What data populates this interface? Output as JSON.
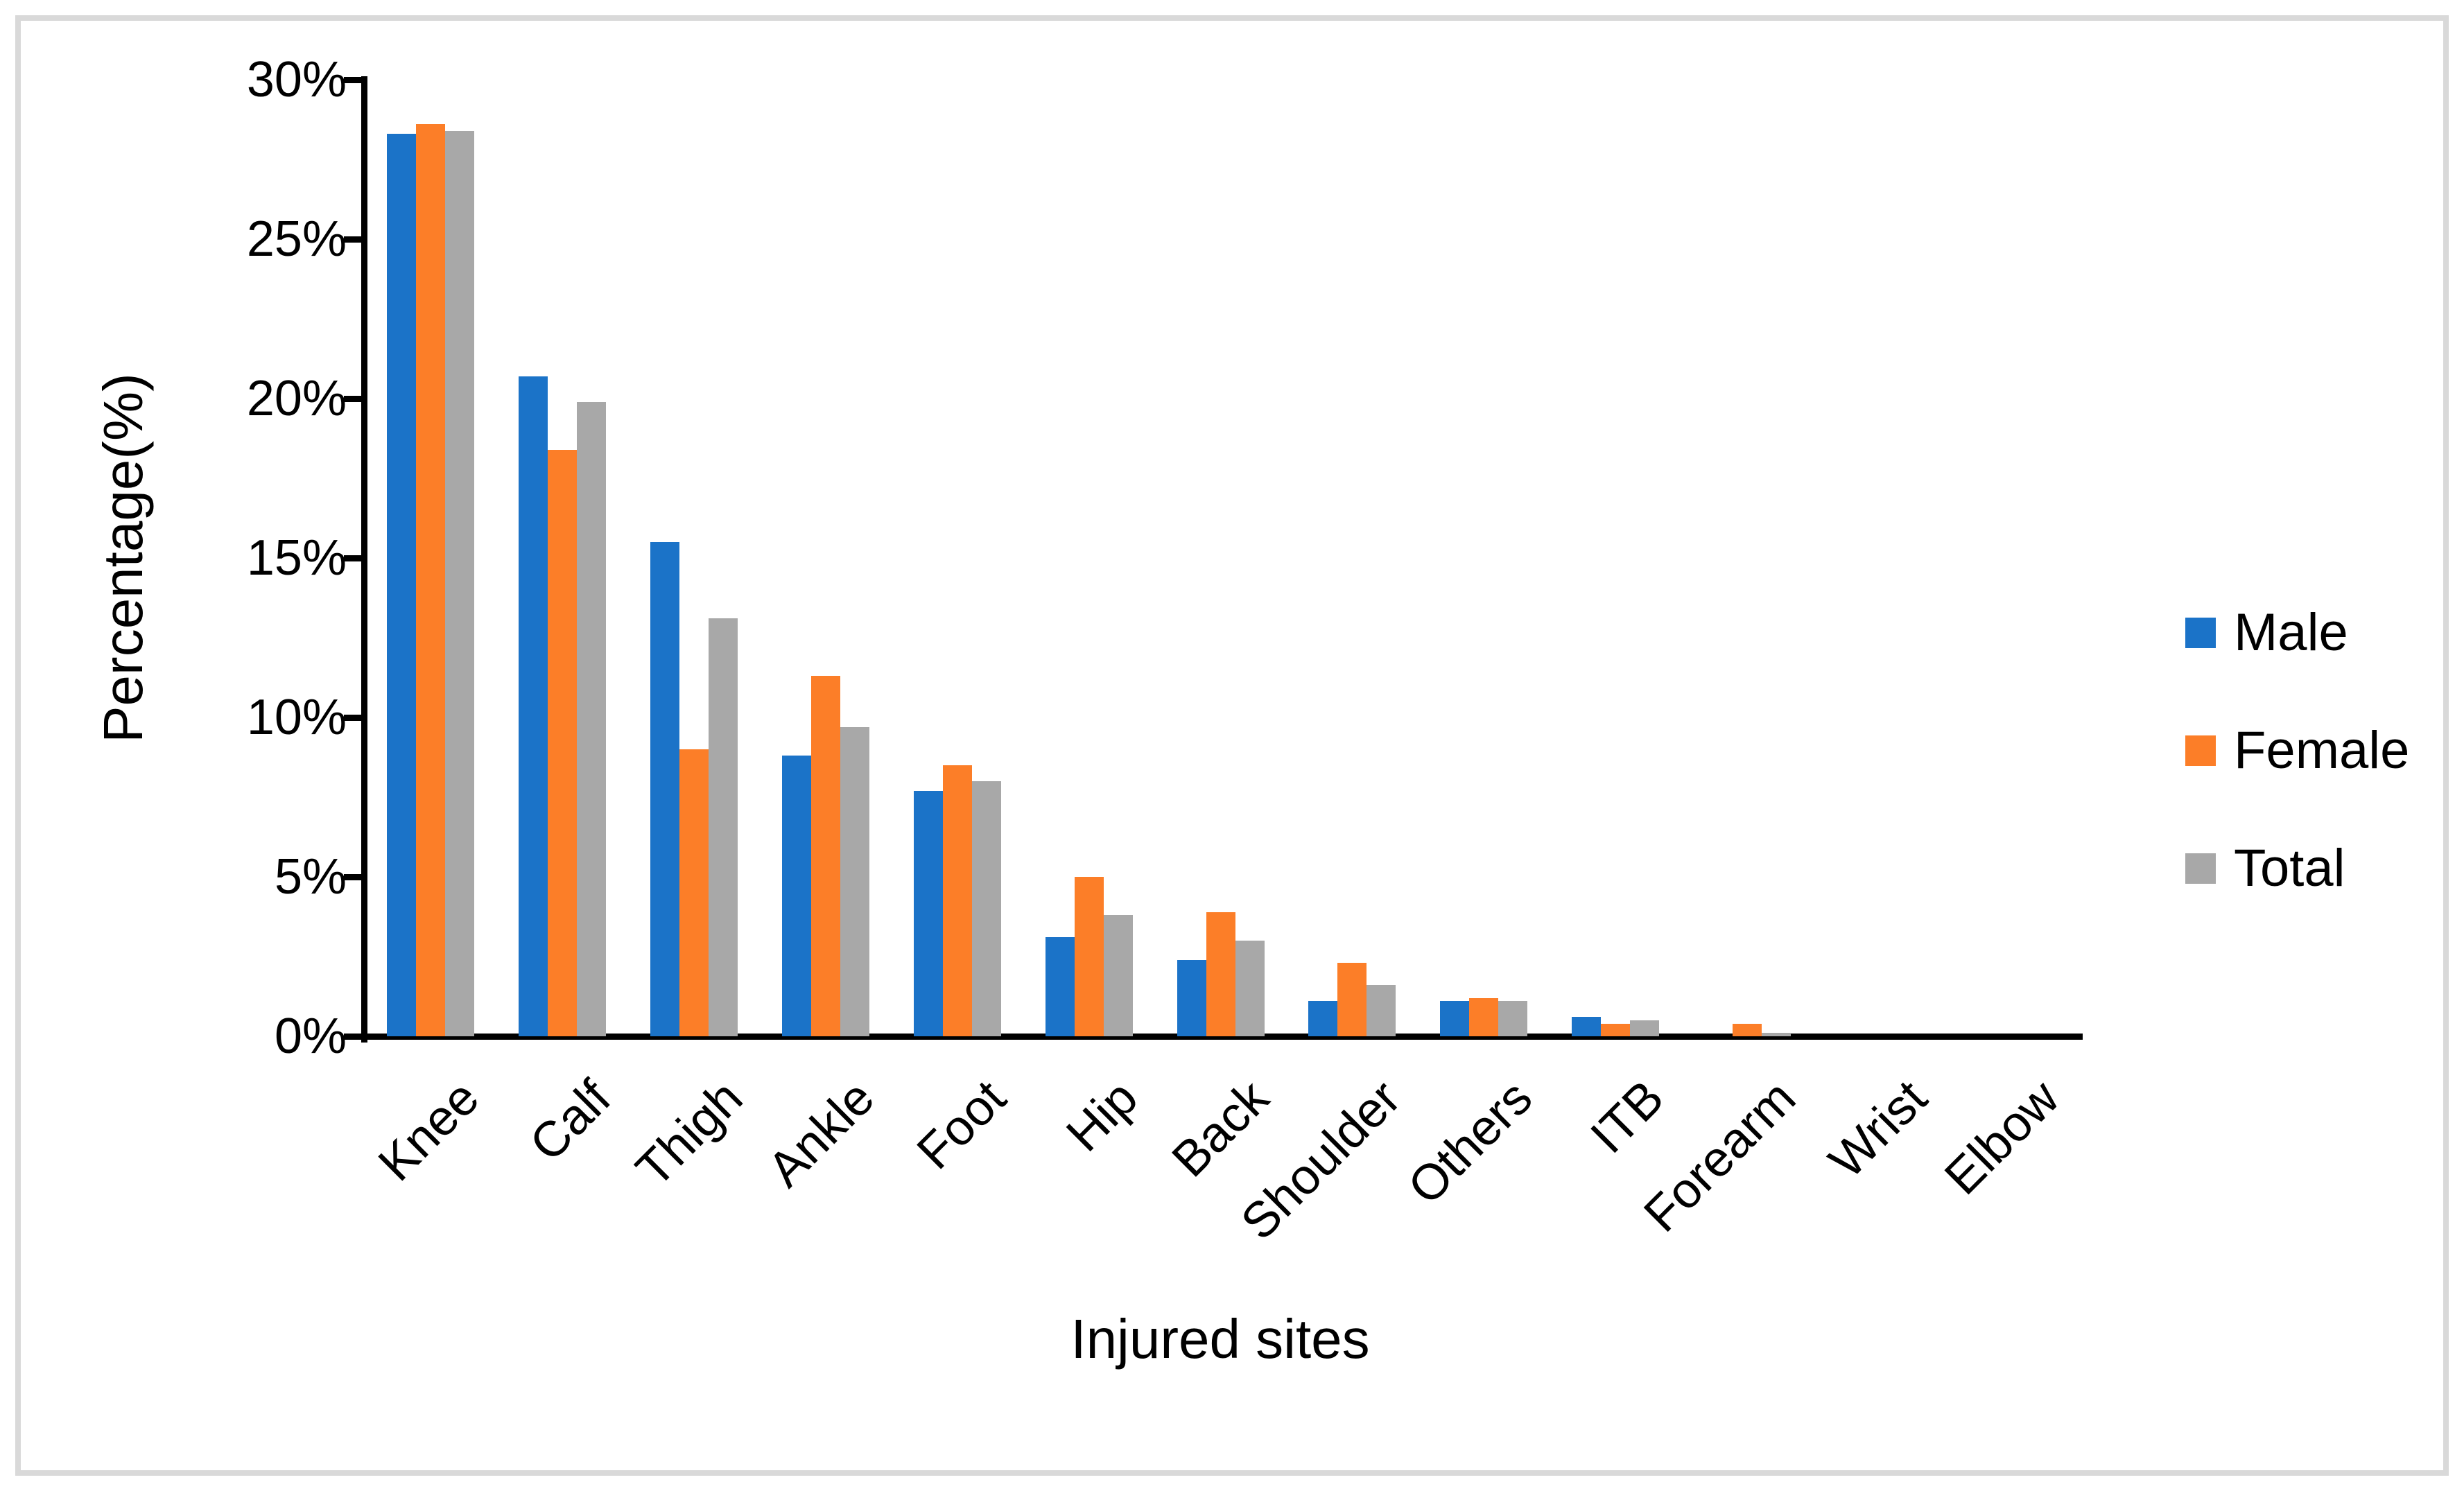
{
  "figure": {
    "border_color": "#d9d9d9",
    "background_color": "#ffffff",
    "axis_color": "#000000",
    "text_color": "#000000"
  },
  "chart_data": {
    "type": "bar",
    "title": "",
    "xlabel": "Injured sites",
    "ylabel": "Percentage(%)",
    "ylim": [
      0,
      30
    ],
    "grid": false,
    "legend_position": "right",
    "yticks": [
      {
        "value": 0,
        "label": "0%"
      },
      {
        "value": 5,
        "label": "5%"
      },
      {
        "value": 10,
        "label": "10%"
      },
      {
        "value": 15,
        "label": "15%"
      },
      {
        "value": 20,
        "label": "20%"
      },
      {
        "value": 25,
        "label": "25%"
      },
      {
        "value": 30,
        "label": "30%"
      }
    ],
    "categories": [
      "Knee",
      "Calf",
      "Thigh",
      "Ankle",
      "Foot",
      "Hip",
      "Back",
      "Shoulder",
      "Others",
      "ITB",
      "Forearm",
      "Wrist",
      "Elbow"
    ],
    "series": [
      {
        "name": "Male",
        "color": "#1b73c8",
        "values": [
          28.3,
          20.7,
          15.5,
          8.8,
          7.7,
          3.1,
          2.4,
          1.1,
          1.1,
          0.6,
          0,
          0,
          0
        ]
      },
      {
        "name": "Female",
        "color": "#fc7e28",
        "values": [
          28.6,
          18.4,
          9.0,
          11.3,
          8.5,
          5.0,
          3.9,
          2.3,
          1.2,
          0.4,
          0.4,
          0,
          0
        ]
      },
      {
        "name": "Total",
        "color": "#a8a8a8",
        "values": [
          28.4,
          19.9,
          13.1,
          9.7,
          8.0,
          3.8,
          3.0,
          1.6,
          1.1,
          0.5,
          0.1,
          0,
          0
        ]
      }
    ]
  }
}
